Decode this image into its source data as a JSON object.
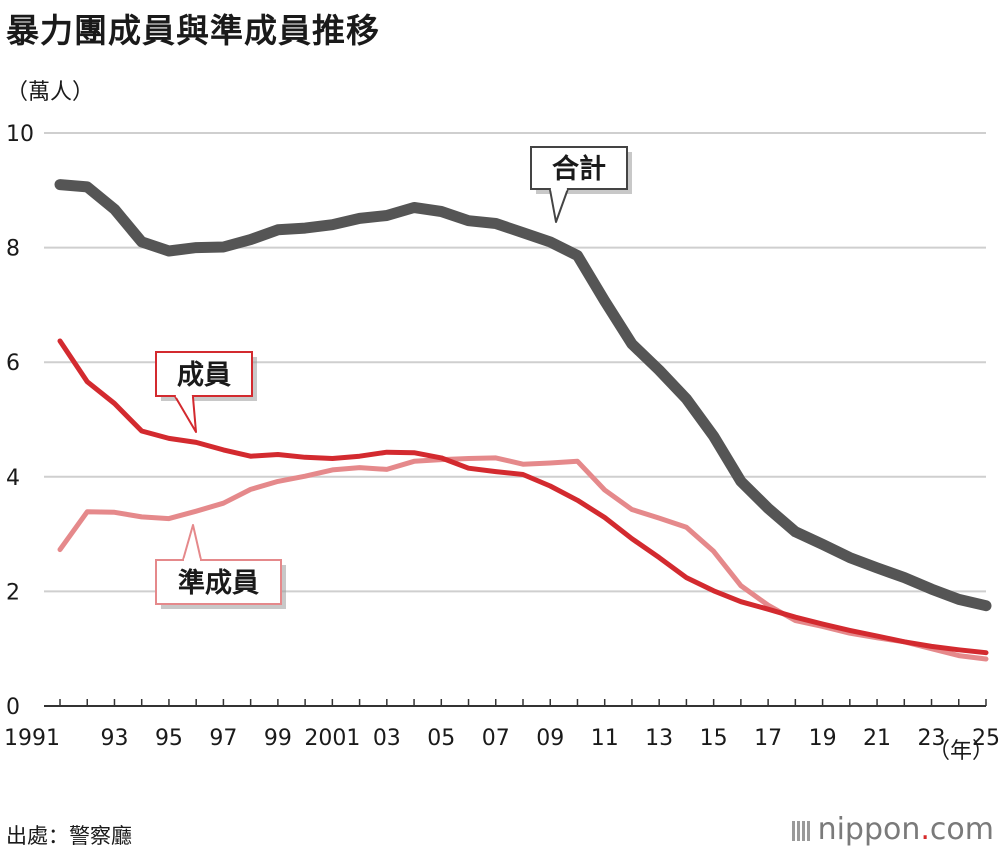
{
  "title": "暴力團成員與準成員推移",
  "unit_label": "（萬人）",
  "year_unit": "（年）",
  "source": "出處：警察廳",
  "logo": {
    "prefix": "nippon",
    "dot": ".",
    "suffix": "com"
  },
  "chart_data": {
    "type": "line",
    "title": "暴力團成員與準成員推移",
    "ylabel": "（萬人）",
    "xlabel": "（年）",
    "ylim": [
      0,
      10
    ],
    "xlim": [
      1991,
      2025
    ],
    "y_ticks": [
      0,
      2,
      4,
      6,
      8,
      10
    ],
    "y_tick_labels": [
      "0",
      "2",
      "4",
      "6",
      "8",
      "10"
    ],
    "x_ticks": [
      1991,
      1993,
      1995,
      1997,
      1999,
      2001,
      2003,
      2005,
      2007,
      2009,
      2011,
      2013,
      2015,
      2017,
      2019,
      2021,
      2023,
      2025
    ],
    "x_tick_labels": [
      "1991",
      "93",
      "95",
      "97",
      "99",
      "2001",
      "03",
      "05",
      "07",
      "09",
      "11",
      "13",
      "15",
      "17",
      "19",
      "21",
      "23",
      "25"
    ],
    "grid": true,
    "x": [
      1991,
      1992,
      1993,
      1994,
      1995,
      1996,
      1997,
      1998,
      1999,
      2000,
      2001,
      2002,
      2003,
      2004,
      2005,
      2006,
      2007,
      2008,
      2009,
      2010,
      2011,
      2012,
      2013,
      2014,
      2015,
      2016,
      2017,
      2018,
      2019,
      2020,
      2021,
      2022,
      2023,
      2024,
      2025
    ],
    "series": [
      {
        "name": "合計",
        "color": "#555555",
        "values": [
          9.1,
          9.06,
          8.67,
          8.1,
          7.94,
          8.0,
          8.01,
          8.14,
          8.31,
          8.34,
          8.4,
          8.51,
          8.56,
          8.7,
          8.63,
          8.47,
          8.42,
          8.26,
          8.1,
          7.86,
          7.07,
          6.32,
          5.86,
          5.36,
          4.71,
          3.92,
          3.45,
          3.04,
          2.82,
          2.59,
          2.41,
          2.24,
          2.04,
          1.86,
          1.75
        ]
      },
      {
        "name": "成員",
        "color": "#d32a2f",
        "values": [
          6.37,
          5.66,
          5.28,
          4.8,
          4.67,
          4.6,
          4.47,
          4.36,
          4.39,
          4.34,
          4.32,
          4.36,
          4.43,
          4.42,
          4.33,
          4.15,
          4.09,
          4.04,
          3.84,
          3.59,
          3.29,
          2.92,
          2.59,
          2.24,
          2.01,
          1.82,
          1.69,
          1.55,
          1.43,
          1.32,
          1.22,
          1.12,
          1.04,
          0.98,
          0.93
        ]
      },
      {
        "name": "準成員",
        "color": "#e5898b",
        "values": [
          2.73,
          3.39,
          3.38,
          3.3,
          3.27,
          3.4,
          3.54,
          3.78,
          3.92,
          4.01,
          4.12,
          4.16,
          4.13,
          4.27,
          4.3,
          4.32,
          4.33,
          4.22,
          4.24,
          4.27,
          3.77,
          3.43,
          3.28,
          3.12,
          2.7,
          2.1,
          1.76,
          1.49,
          1.39,
          1.27,
          1.19,
          1.12,
          1.0,
          0.88,
          0.82
        ]
      }
    ],
    "annotations": [
      {
        "text": "合計",
        "series": "合計",
        "style": "dark box, pointer down"
      },
      {
        "text": "成員",
        "series": "成員",
        "style": "red box, pointer down"
      },
      {
        "text": "準成員",
        "series": "準成員",
        "style": "pink box, pointer up"
      }
    ]
  }
}
